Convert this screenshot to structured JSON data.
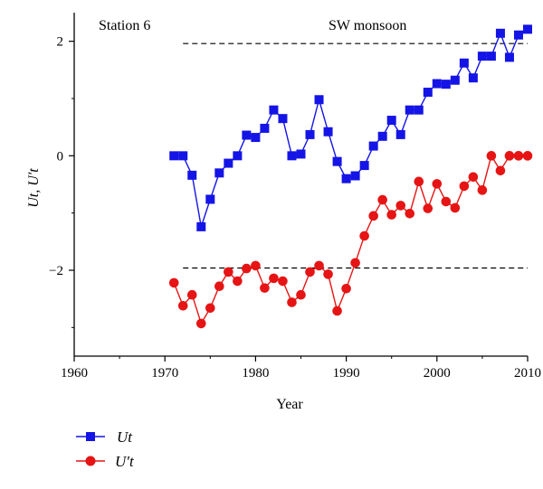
{
  "chart_data": {
    "type": "line",
    "title": "",
    "annotations": {
      "left": "Station 6",
      "right": "SW monsoon"
    },
    "xlabel": "Year",
    "ylabel": "Ut, U′t",
    "xlim": [
      1960,
      2010
    ],
    "ylim": [
      -3.5,
      2.5
    ],
    "x_ticks": [
      1960,
      1970,
      1980,
      1990,
      2000,
      2010
    ],
    "y_ticks": [
      -2,
      0,
      2
    ],
    "reference_lines": [
      1.96,
      -1.96
    ],
    "grid": false,
    "legend_position": "bottom-left",
    "series": [
      {
        "name": "Ut",
        "color": "#1414e6",
        "marker": "square",
        "x": [
          1971,
          1972,
          1973,
          1974,
          1975,
          1976,
          1977,
          1978,
          1979,
          1980,
          1981,
          1982,
          1983,
          1984,
          1985,
          1986,
          1987,
          1988,
          1989,
          1990,
          1991,
          1992,
          1993,
          1994,
          1995,
          1996,
          1997,
          1998,
          1999,
          2000,
          2001,
          2002,
          2003,
          2004,
          2005,
          2006,
          2007,
          2008,
          2009,
          2010
        ],
        "values": [
          0.0,
          0.0,
          -0.34,
          -1.24,
          -0.76,
          -0.3,
          -0.13,
          0.0,
          0.36,
          0.32,
          0.48,
          0.8,
          0.65,
          0.0,
          0.03,
          0.37,
          0.98,
          0.42,
          -0.1,
          -0.4,
          -0.35,
          -0.17,
          0.17,
          0.34,
          0.62,
          0.37,
          0.8,
          0.8,
          1.11,
          1.26,
          1.25,
          1.32,
          1.62,
          1.36,
          1.74,
          1.74,
          2.14,
          1.72,
          2.11,
          2.21
        ]
      },
      {
        "name": "U′t",
        "color": "#e61414",
        "marker": "circle",
        "x": [
          1971,
          1972,
          1973,
          1974,
          1975,
          1976,
          1977,
          1978,
          1979,
          1980,
          1981,
          1982,
          1983,
          1984,
          1985,
          1986,
          1987,
          1988,
          1989,
          1990,
          1991,
          1992,
          1993,
          1994,
          1995,
          1996,
          1997,
          1998,
          1999,
          2000,
          2001,
          2002,
          2003,
          2004,
          2005,
          2006,
          2007,
          2008,
          2009,
          2010
        ],
        "values": [
          -2.22,
          -2.62,
          -2.43,
          -2.93,
          -2.66,
          -2.28,
          -2.03,
          -2.19,
          -1.97,
          -1.92,
          -2.31,
          -2.14,
          -2.19,
          -2.56,
          -2.43,
          -2.03,
          -1.92,
          -2.07,
          -2.71,
          -2.32,
          -1.87,
          -1.4,
          -1.05,
          -0.77,
          -1.03,
          -0.87,
          -1.01,
          -0.45,
          -0.92,
          -0.49,
          -0.8,
          -0.91,
          -0.53,
          -0.37,
          -0.6,
          0.0,
          -0.26,
          0.0,
          0.0,
          0.0
        ]
      }
    ]
  }
}
